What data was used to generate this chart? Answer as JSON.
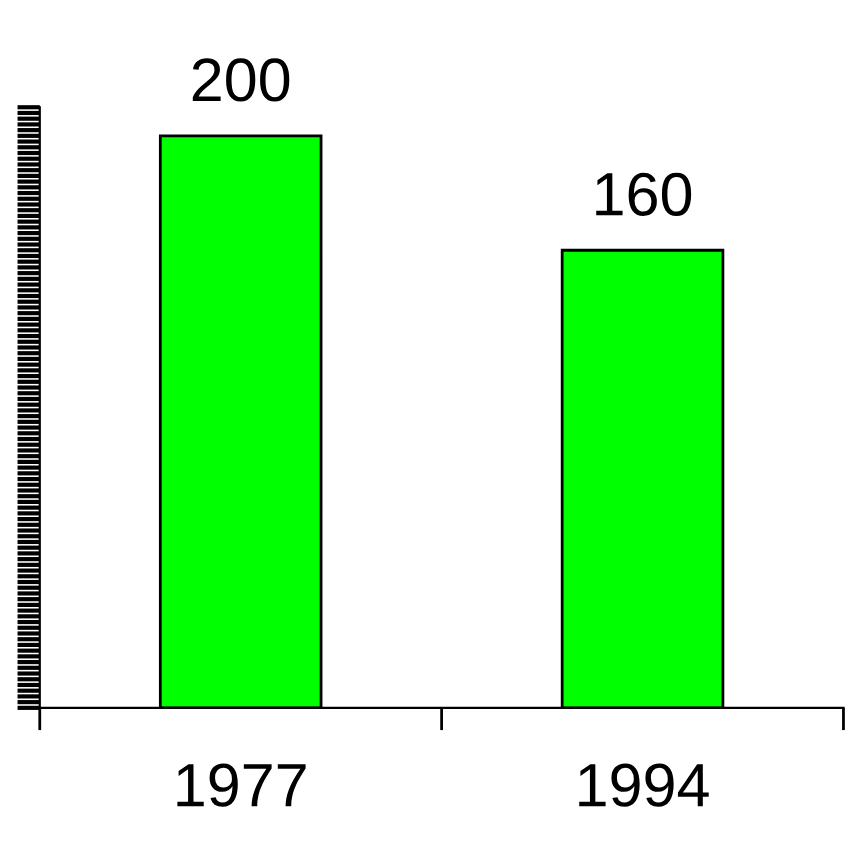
{
  "chart_data": {
    "type": "bar",
    "categories": [
      "1977",
      "1994"
    ],
    "values": [
      200,
      160
    ],
    "color": "#00ff00",
    "data_labels": true,
    "tick_labels": "x",
    "grid": false,
    "legend": false,
    "ylim": [
      0,
      210
    ],
    "yticks": [
      {
        "value": 0,
        "label": null
      },
      {
        "value": 2,
        "label": null
      },
      {
        "value": 4,
        "label": null
      },
      {
        "value": 6,
        "label": null
      },
      {
        "value": 8,
        "label": null
      },
      {
        "value": 10,
        "label": null
      },
      {
        "value": 12,
        "label": null
      },
      {
        "value": 14,
        "label": null
      },
      {
        "value": 16,
        "label": null
      },
      {
        "value": 18,
        "label": null
      },
      {
        "value": 20,
        "label": null
      },
      {
        "value": 22,
        "label": null
      },
      {
        "value": 24,
        "label": null
      },
      {
        "value": 26,
        "label": null
      },
      {
        "value": 28,
        "label": null
      },
      {
        "value": 30,
        "label": null
      },
      {
        "value": 32,
        "label": null
      },
      {
        "value": 34,
        "label": null
      },
      {
        "value": 36,
        "label": null
      },
      {
        "value": 38,
        "label": null
      },
      {
        "value": 40,
        "label": null
      },
      {
        "value": 42,
        "label": null
      },
      {
        "value": 44,
        "label": null
      },
      {
        "value": 46,
        "label": null
      },
      {
        "value": 48,
        "label": null
      },
      {
        "value": 50,
        "label": null
      },
      {
        "value": 52,
        "label": null
      },
      {
        "value": 54,
        "label": null
      },
      {
        "value": 56,
        "label": null
      },
      {
        "value": 58,
        "label": null
      },
      {
        "value": 60,
        "label": null
      },
      {
        "value": 62,
        "label": null
      },
      {
        "value": 64,
        "label": null
      },
      {
        "value": 66,
        "label": null
      },
      {
        "value": 68,
        "label": null
      },
      {
        "value": 70,
        "label": null
      },
      {
        "value": 72,
        "label": null
      },
      {
        "value": 74,
        "label": null
      },
      {
        "value": 76,
        "label": null
      },
      {
        "value": 78,
        "label": null
      },
      {
        "value": 80,
        "label": null
      },
      {
        "value": 82,
        "label": null
      },
      {
        "value": 84,
        "label": null
      },
      {
        "value": 86,
        "label": null
      },
      {
        "value": 88,
        "label": null
      },
      {
        "value": 90,
        "label": null
      },
      {
        "value": 92,
        "label": null
      },
      {
        "value": 94,
        "label": null
      },
      {
        "value": 96,
        "label": null
      },
      {
        "value": 98,
        "label": null
      },
      {
        "value": 100,
        "label": null
      },
      {
        "value": 102,
        "label": null
      },
      {
        "value": 104,
        "label": null
      },
      {
        "value": 106,
        "label": null
      },
      {
        "value": 108,
        "label": null
      },
      {
        "value": 110,
        "label": null
      },
      {
        "value": 112,
        "label": null
      },
      {
        "value": 114,
        "label": null
      },
      {
        "value": 116,
        "label": null
      },
      {
        "value": 118,
        "label": null
      },
      {
        "value": 120,
        "label": null
      },
      {
        "value": 122,
        "label": null
      },
      {
        "value": 124,
        "label": null
      },
      {
        "value": 126,
        "label": null
      },
      {
        "value": 128,
        "label": null
      },
      {
        "value": 130,
        "label": null
      },
      {
        "value": 132,
        "label": null
      },
      {
        "value": 134,
        "label": null
      },
      {
        "value": 136,
        "label": null
      },
      {
        "value": 138,
        "label": null
      },
      {
        "value": 140,
        "label": null
      },
      {
        "value": 142,
        "label": null
      },
      {
        "value": 144,
        "label": null
      },
      {
        "value": 146,
        "label": null
      },
      {
        "value": 148,
        "label": null
      },
      {
        "value": 150,
        "label": null
      },
      {
        "value": 152,
        "label": null
      },
      {
        "value": 154,
        "label": null
      },
      {
        "value": 156,
        "label": null
      },
      {
        "value": 158,
        "label": null
      },
      {
        "value": 160,
        "label": null
      },
      {
        "value": 162,
        "label": null
      },
      {
        "value": 164,
        "label": null
      },
      {
        "value": 166,
        "label": null
      },
      {
        "value": 168,
        "label": null
      },
      {
        "value": 170,
        "label": null
      },
      {
        "value": 172,
        "label": null
      },
      {
        "value": 174,
        "label": null
      },
      {
        "value": 176,
        "label": null
      },
      {
        "value": 178,
        "label": null
      },
      {
        "value": 180,
        "label": null
      },
      {
        "value": 182,
        "label": null
      },
      {
        "value": 184,
        "label": null
      },
      {
        "value": 186,
        "label": null
      },
      {
        "value": 188,
        "label": null
      },
      {
        "value": 190,
        "label": null
      },
      {
        "value": 192,
        "label": null
      },
      {
        "value": 194,
        "label": null
      },
      {
        "value": 196,
        "label": null
      },
      {
        "value": 198,
        "label": null
      },
      {
        "value": 200,
        "label": null
      },
      {
        "value": 202,
        "label": null
      },
      {
        "value": 204,
        "label": null
      },
      {
        "value": 206,
        "label": null
      },
      {
        "value": 208,
        "label": null
      },
      {
        "value": 210,
        "label": null
      }
    ]
  }
}
